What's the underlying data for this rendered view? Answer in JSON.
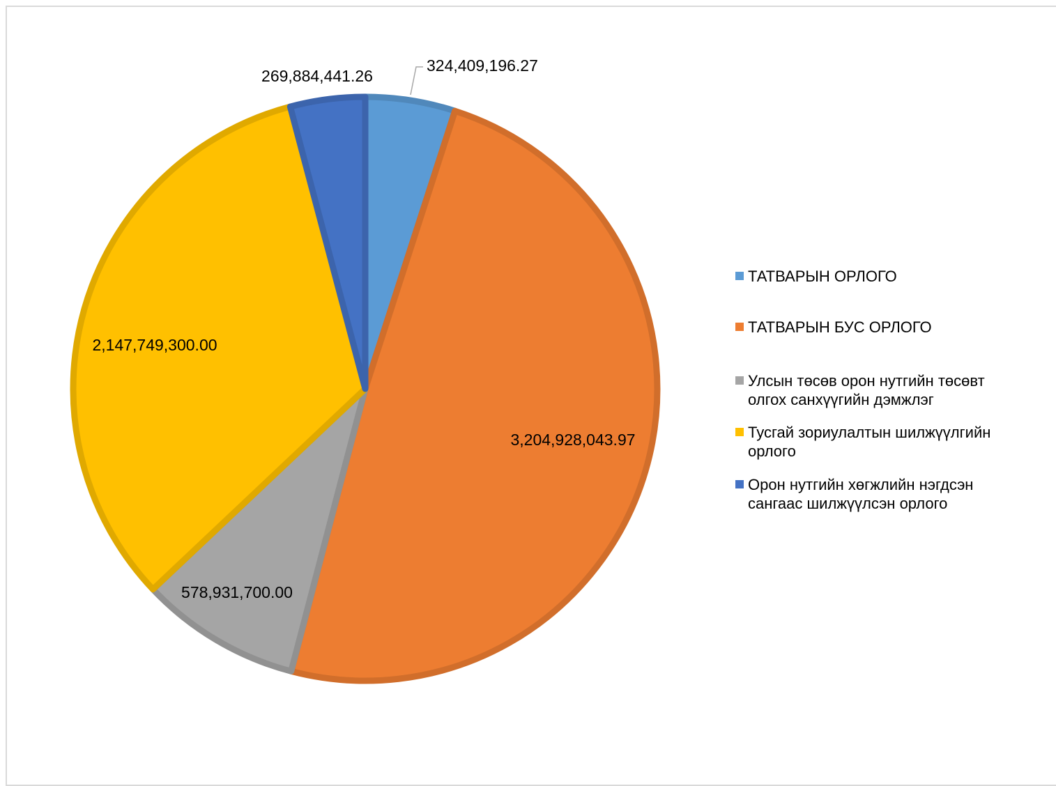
{
  "chart_data": {
    "type": "pie",
    "title": "",
    "series": [
      {
        "name": "",
        "slices": [
          {
            "label": "ТАТВАРЫН ОРЛОГО",
            "value": 324409196.27,
            "display": "324,409,196.27",
            "color": "#5B9BD5"
          },
          {
            "label": "ТАТВАРЫН БУС ОРЛОГО",
            "value": 3204928043.97,
            "display": "3,204,928,043.97",
            "color": "#ED7D31"
          },
          {
            "label": "Улсын төсөв орон нутгийн төсөвт олгох санхүүгийн дэмжлэг",
            "value": 578931700.0,
            "display": "578,931,700.00",
            "color": "#A5A5A5"
          },
          {
            "label": "Тусгай зориулалтын шилжүүлгийн орлого",
            "value": 2147749300.0,
            "display": "2,147,749,300.00",
            "color": "#FFC000"
          },
          {
            "label": "Орон нутгийн хөгжлийн нэгдсэн сангаас шилжүүлсэн орлого",
            "value": 269884441.26,
            "display": "269,884,441.26",
            "color": "#4472C4"
          }
        ]
      }
    ],
    "legend_position": "right",
    "start_angle": "12 o'clock",
    "direction": "clockwise"
  },
  "legend": {
    "items": [
      {
        "text": "ТАТВАРЫН ОРЛОГО",
        "color": "#5B9BD5"
      },
      {
        "text": "ТАТВАРЫН БУС ОРЛОГО",
        "color": "#ED7D31"
      },
      {
        "text": "Улсын төсөв орон нутгийн төсөвт\nолгох санхүүгийн дэмжлэг",
        "color": "#A5A5A5"
      },
      {
        "text": "Тусгай зориулалтын шилжүүлгийн\nорлого",
        "color": "#FFC000"
      },
      {
        "text": "Орон нутгийн хөгжлийн нэгдсэн\nсангаас шилжүүлсэн орлого",
        "color": "#4472C4"
      }
    ]
  }
}
